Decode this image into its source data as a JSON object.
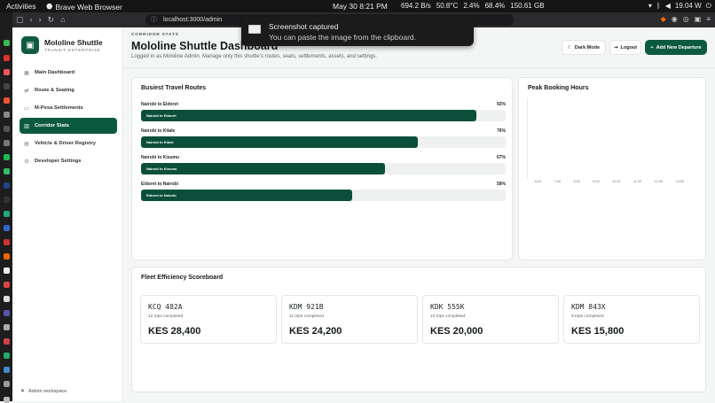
{
  "system_bar": {
    "activities": "Activities",
    "app_name": "Brave Web Browser",
    "clock": "May 30  8:21 PM",
    "stats": [
      "694.2 B/s",
      "50.8°C",
      "2.4%",
      "68.4%",
      "150.61 GB"
    ],
    "power": "19.04 W"
  },
  "browser": {
    "url": "localhost:3000/admin"
  },
  "toast": {
    "title": "Screenshot captured",
    "message": "You can paste the image from the clipboard."
  },
  "sidebar": {
    "brand_name": "Mololine Shuttle",
    "brand_sub": "TRANSIT ENTERPRISE",
    "items": [
      {
        "label": "Main Dashboard",
        "icon": "grid-icon"
      },
      {
        "label": "Route & Seating",
        "icon": "route-icon"
      },
      {
        "label": "M-Pesa Settlements",
        "icon": "wallet-icon"
      },
      {
        "label": "Corridor Stats",
        "icon": "chart-icon"
      },
      {
        "label": "Vehicle & Driver Registry",
        "icon": "bus-icon"
      },
      {
        "label": "Developer Settings",
        "icon": "gear-icon"
      }
    ],
    "active_index": 3,
    "footer": "Admin workspace"
  },
  "header": {
    "kicker": "CORRIDOR STATS",
    "title": "Mololine Shuttle Dashboard",
    "subtitle": "Logged in as Mololine Admin. Manage only this shuttle's routes, seats, settlements, assets, and settings.",
    "dark_mode": "Dark Mode",
    "logout": "Logout",
    "add_departure": "Add New Departure"
  },
  "routes_card": {
    "title": "Busiest Travel Routes",
    "routes": [
      {
        "label": "Nairobi to Eldoret",
        "percent_text": "92%",
        "value": 92
      },
      {
        "label": "Nairobi to Kitale",
        "percent_text": "76%",
        "value": 76
      },
      {
        "label": "Nairobi to Kisumu",
        "percent_text": "67%",
        "value": 67
      },
      {
        "label": "Eldoret to Nairobi",
        "percent_text": "58%",
        "value": 58
      }
    ]
  },
  "peak_card": {
    "title": "Peak Booking Hours",
    "hours": [
      "6:00",
      "7:00",
      "8:00",
      "9:00",
      "10:00",
      "11:00",
      "12:00",
      "13:00"
    ]
  },
  "fleet_card": {
    "title": "Fleet Efficiency Scoreboard",
    "vehicles": [
      {
        "plate": "KCQ 482A",
        "trips": "12 trips completed",
        "amount": "KES 28,400"
      },
      {
        "plate": "KDM 921B",
        "trips": "11 trips completed",
        "amount": "KES 24,200"
      },
      {
        "plate": "KDK 555K",
        "trips": "10 trips completed",
        "amount": "KES 20,000"
      },
      {
        "plate": "KDM 843X",
        "trips": "9 trips completed",
        "amount": "KES 15,800"
      }
    ]
  },
  "colors": {
    "accent": "#0b5a40",
    "bar_fill": "#0b4f3a",
    "track": "#eef1f0"
  }
}
